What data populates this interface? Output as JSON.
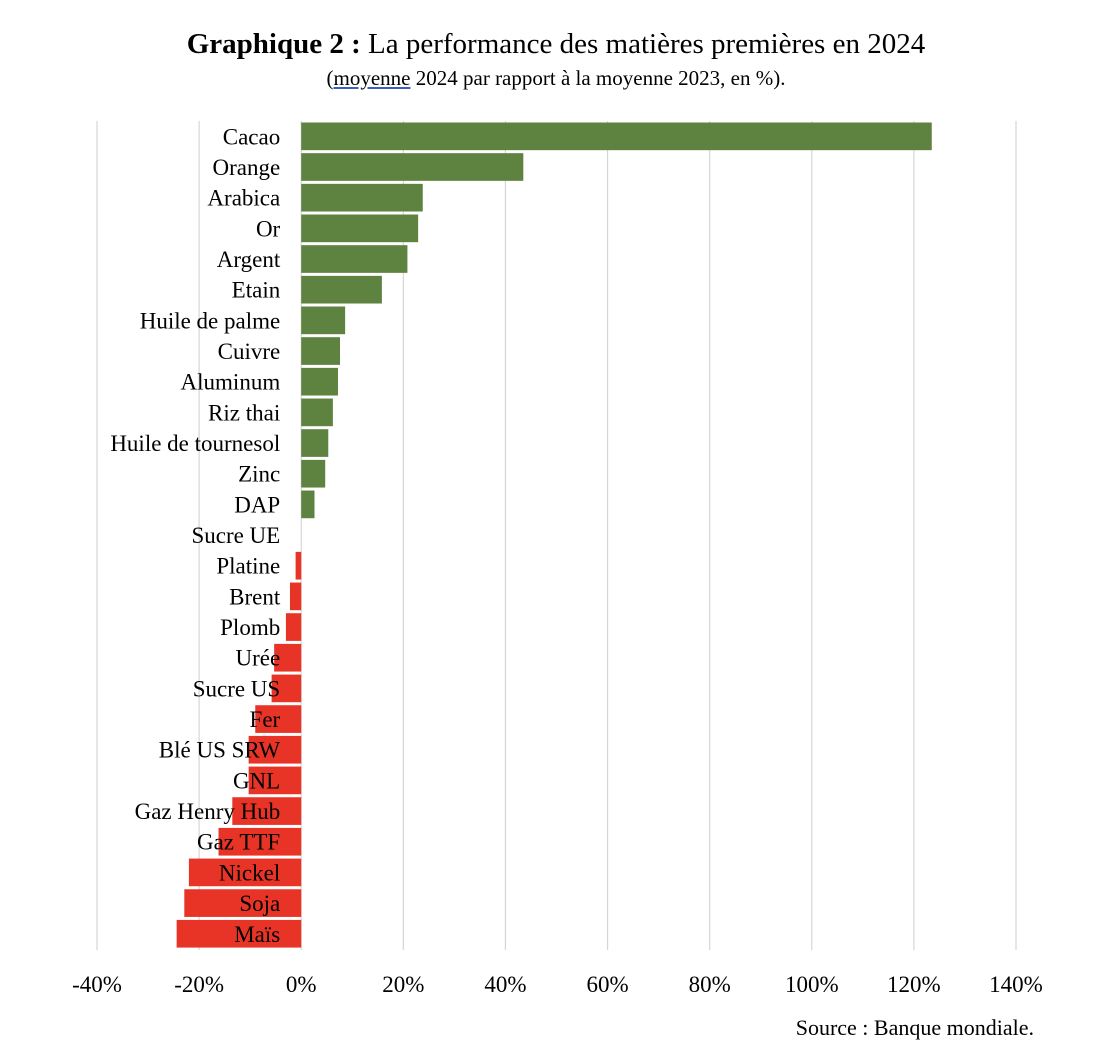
{
  "title_bold": "Graphique 2 :",
  "title_rest": " La performance des matières premières en 2024",
  "subtitle_open": "(",
  "subtitle_underlined": "moyenne",
  "subtitle_rest": " 2024 par rapport à la moyenne 2023, en %).",
  "source": "Source : Banque mondiale.",
  "colors": {
    "positive": "#5e8240",
    "negative": "#e83426",
    "grid": "#d6d6d6"
  },
  "chart_data": {
    "type": "bar",
    "orientation": "horizontal",
    "title": "Graphique 2 : La performance des matières premières en 2024",
    "subtitle": "(moyenne 2024 par rapport à la moyenne 2023, en %).",
    "xlabel": "",
    "ylabel": "",
    "xlim": [
      -40,
      140
    ],
    "xticks": [
      -40,
      -20,
      0,
      20,
      40,
      60,
      80,
      100,
      120,
      140
    ],
    "tick_labels": [
      "-40%",
      "-20%",
      "0%",
      "20%",
      "40%",
      "60%",
      "80%",
      "100%",
      "120%",
      "140%"
    ],
    "grid": true,
    "categories": [
      "Cacao",
      "Orange",
      "Arabica",
      "Or",
      "Argent",
      "Etain",
      "Huile de palme",
      "Cuivre",
      "Aluminum",
      "Riz thai",
      "Huile de tournesol",
      "Zinc",
      "DAP",
      "Sucre UE",
      "Platine",
      "Brent",
      "Plomb",
      "Urée",
      "Sucre US",
      "Fer",
      "Blé US SRW",
      "GNL",
      "Gaz Henry Hub",
      "Gaz TTF",
      "Nickel",
      "Soja",
      "Maïs"
    ],
    "values": [
      123.5,
      43.5,
      23.8,
      22.9,
      20.8,
      15.8,
      8.6,
      7.6,
      7.2,
      6.2,
      5.3,
      4.7,
      2.6,
      0.0,
      -1.1,
      -2.2,
      -3.0,
      -5.3,
      -5.8,
      -9.0,
      -10.3,
      -10.3,
      -13.5,
      -16.2,
      -22.0,
      -22.9,
      -24.4
    ]
  }
}
